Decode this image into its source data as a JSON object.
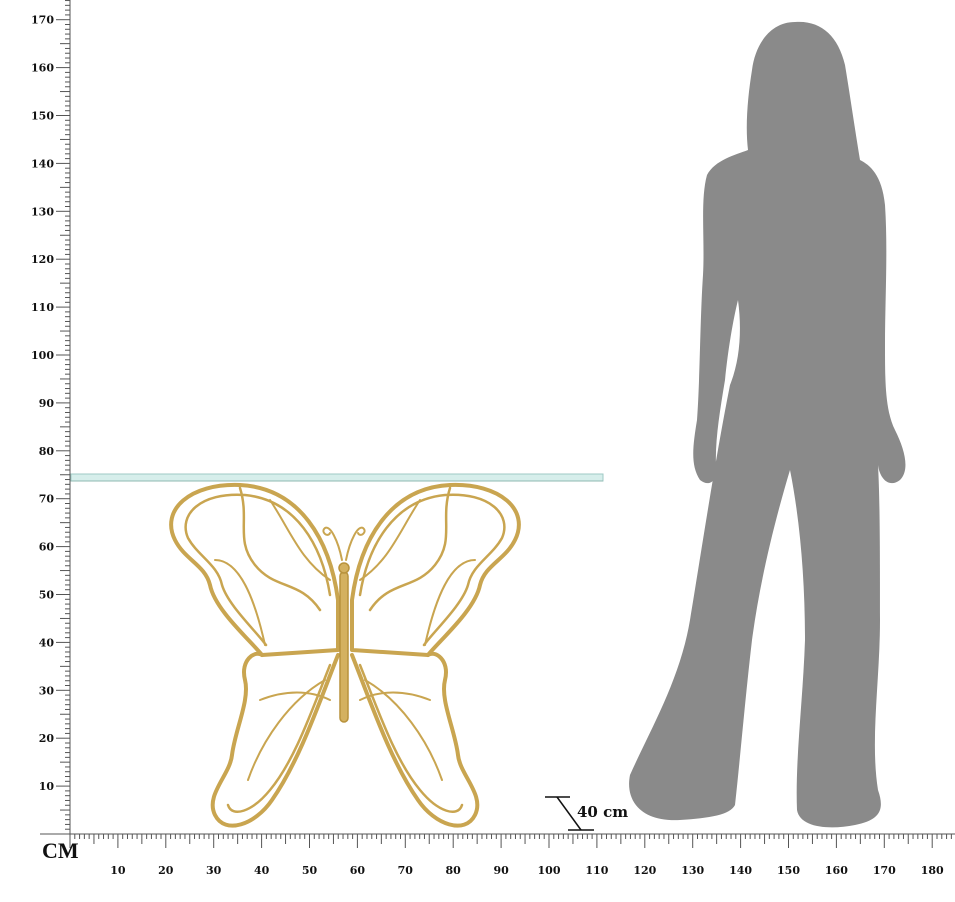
{
  "ruler": {
    "unit_label": "CM",
    "vertical_labels": [
      "10",
      "20",
      "30",
      "40",
      "50",
      "60",
      "70",
      "80",
      "90",
      "100",
      "110",
      "120",
      "130",
      "140",
      "150",
      "160",
      "170"
    ],
    "horizontal_labels": [
      "10",
      "20",
      "30",
      "40",
      "50",
      "60",
      "70",
      "80",
      "90",
      "100",
      "110",
      "120",
      "130",
      "140",
      "150",
      "160",
      "170",
      "180"
    ]
  },
  "product": {
    "depth_label": "40 cm",
    "glass_color": "#cfe9e6",
    "frame_color": "#c9a550"
  },
  "silhouette": {
    "color": "#8a8a8a"
  }
}
